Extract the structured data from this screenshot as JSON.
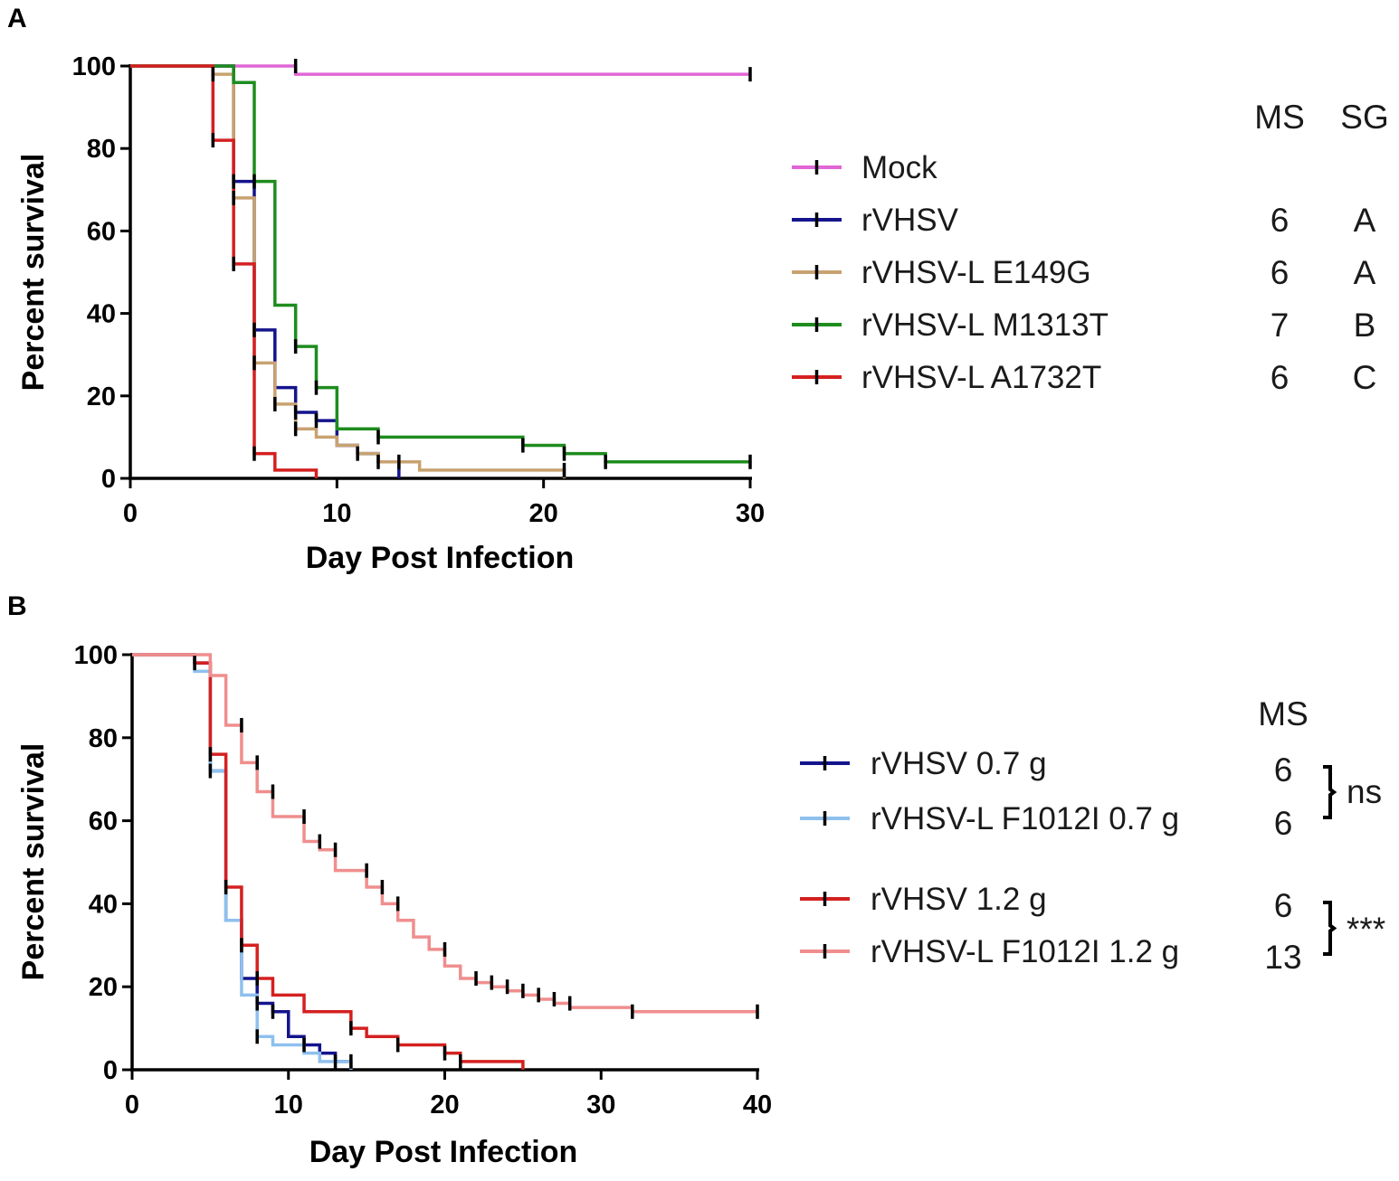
{
  "chart_data": [
    {
      "type": "line",
      "panel_label": "A",
      "xlabel": "Day Post Infection",
      "ylabel": "Percent survival",
      "xlim": [
        0,
        30
      ],
      "ylim": [
        0,
        100
      ],
      "xticks": [
        "0",
        "10",
        "20",
        "30"
      ],
      "yticks": [
        "0",
        "20",
        "40",
        "60",
        "80",
        "100"
      ],
      "columns": {
        "ms": "MS",
        "sg": "SG"
      },
      "series": [
        {
          "name": "Mock",
          "color": "#e066d6",
          "ms": "",
          "sg": "",
          "x": [
            0,
            8,
            30
          ],
          "y": [
            100,
            98,
            98
          ],
          "censors": [
            [
              8,
              100
            ],
            [
              30,
              98
            ]
          ]
        },
        {
          "name": "rVHSV",
          "color": "#14148c",
          "ms": "6",
          "sg": "A",
          "x": [
            0,
            5,
            6,
            7,
            8,
            9,
            10,
            11,
            12,
            13
          ],
          "y": [
            100,
            72,
            36,
            22,
            16,
            14,
            8,
            6,
            4,
            0
          ],
          "censors": [
            [
              5,
              72
            ],
            [
              6,
              36
            ],
            [
              8,
              16
            ],
            [
              9,
              14
            ],
            [
              12,
              4
            ]
          ]
        },
        {
          "name": "rVHSV-L E149G",
          "color": "#c8a270",
          "ms": "6",
          "sg": "A",
          "x": [
            0,
            4,
            5,
            6,
            7,
            8,
            9,
            10,
            11,
            12,
            13,
            14,
            21
          ],
          "y": [
            100,
            98,
            68,
            28,
            18,
            12,
            10,
            8,
            6,
            4,
            4,
            2,
            0
          ],
          "censors": [
            [
              4,
              98
            ],
            [
              5,
              68
            ],
            [
              6,
              28
            ],
            [
              7,
              18
            ],
            [
              8,
              12
            ],
            [
              11,
              6
            ],
            [
              13,
              4
            ],
            [
              21,
              2
            ]
          ]
        },
        {
          "name": "rVHSV-L M1313T",
          "color": "#1e8c1e",
          "ms": "7",
          "sg": "B",
          "x": [
            0,
            5,
            6,
            7,
            8,
            9,
            10,
            12,
            19,
            21,
            23,
            30
          ],
          "y": [
            100,
            96,
            72,
            42,
            32,
            22,
            12,
            10,
            8,
            6,
            4,
            4
          ],
          "censors": [
            [
              6,
              72
            ],
            [
              8,
              32
            ],
            [
              9,
              22
            ],
            [
              12,
              10
            ],
            [
              19,
              8
            ],
            [
              21,
              6
            ],
            [
              23,
              4
            ],
            [
              30,
              4
            ]
          ]
        },
        {
          "name": "rVHSV-L A1732T",
          "color": "#d42020",
          "ms": "6",
          "sg": "C",
          "x": [
            0,
            4,
            5,
            6,
            7,
            9
          ],
          "y": [
            100,
            82,
            52,
            6,
            2,
            0
          ],
          "censors": [
            [
              4,
              82
            ],
            [
              5,
              52
            ],
            [
              6,
              6
            ]
          ]
        }
      ]
    },
    {
      "type": "line",
      "panel_label": "B",
      "xlabel": "Day Post Infection",
      "ylabel": "Percent survival",
      "xlim": [
        0,
        40
      ],
      "ylim": [
        0,
        100
      ],
      "xticks": [
        "0",
        "10",
        "20",
        "30",
        "40"
      ],
      "yticks": [
        "0",
        "20",
        "40",
        "60",
        "80",
        "100"
      ],
      "columns": {
        "ms": "MS"
      },
      "series": [
        {
          "name": "rVHSV 0.7 g",
          "color": "#14148c",
          "ms": "6",
          "x": [
            0,
            4,
            5,
            6,
            7,
            8,
            9,
            10,
            11,
            12,
            13,
            14
          ],
          "y": [
            100,
            98,
            72,
            36,
            22,
            16,
            14,
            8,
            6,
            4,
            2,
            0
          ],
          "censors": [
            [
              8,
              16
            ],
            [
              9,
              14
            ],
            [
              11,
              6
            ],
            [
              13,
              2
            ]
          ]
        },
        {
          "name": "rVHSV-L F1012I 0.7 g",
          "color": "#8ec0ee",
          "ms": "6",
          "x": [
            0,
            4,
            5,
            6,
            7,
            8,
            9,
            10,
            11,
            12,
            13,
            14
          ],
          "y": [
            100,
            96,
            72,
            36,
            18,
            8,
            6,
            6,
            4,
            2,
            2,
            0
          ],
          "censors": [
            [
              5,
              72
            ],
            [
              8,
              8
            ],
            [
              14,
              2
            ]
          ]
        },
        {
          "name": "rVHSV 1.2 g",
          "color": "#d42020",
          "ms": "6",
          "x": [
            0,
            4,
            5,
            6,
            7,
            8,
            9,
            11,
            14,
            15,
            17,
            20,
            21,
            25
          ],
          "y": [
            100,
            98,
            76,
            44,
            30,
            22,
            18,
            14,
            10,
            8,
            6,
            4,
            2,
            0
          ],
          "censors": [
            [
              4,
              98
            ],
            [
              5,
              76
            ],
            [
              6,
              44
            ],
            [
              7,
              30
            ],
            [
              8,
              22
            ],
            [
              14,
              10
            ],
            [
              17,
              6
            ],
            [
              20,
              4
            ],
            [
              21,
              2
            ]
          ]
        },
        {
          "name": "rVHSV-L F1012I 1.2 g",
          "color": "#f08e8e",
          "ms": "13",
          "x": [
            0,
            5,
            6,
            7,
            8,
            9,
            11,
            12,
            13,
            15,
            16,
            17,
            18,
            19,
            20,
            21,
            22,
            23,
            24,
            25,
            26,
            27,
            28,
            32,
            40
          ],
          "y": [
            100,
            95,
            83,
            74,
            67,
            61,
            55,
            53,
            48,
            44,
            40,
            36,
            32,
            29,
            25,
            22,
            21,
            20,
            19,
            18,
            17,
            16,
            15,
            14,
            14
          ],
          "censors": [
            [
              7,
              83
            ],
            [
              8,
              74
            ],
            [
              9,
              67
            ],
            [
              11,
              61
            ],
            [
              12,
              55
            ],
            [
              13,
              53
            ],
            [
              15,
              48
            ],
            [
              16,
              44
            ],
            [
              17,
              40
            ],
            [
              20,
              29
            ],
            [
              22,
              22
            ],
            [
              23,
              21
            ],
            [
              24,
              20
            ],
            [
              25,
              19
            ],
            [
              26,
              18
            ],
            [
              27,
              17
            ],
            [
              28,
              16
            ],
            [
              32,
              14
            ],
            [
              40,
              14
            ]
          ]
        }
      ],
      "comparisons": [
        {
          "label": "ns",
          "between": [
            "rVHSV 0.7 g",
            "rVHSV-L F1012I 0.7 g"
          ]
        },
        {
          "label": "***",
          "between": [
            "rVHSV 1.2 g",
            "rVHSV-L F1012I 1.2 g"
          ]
        }
      ]
    }
  ]
}
